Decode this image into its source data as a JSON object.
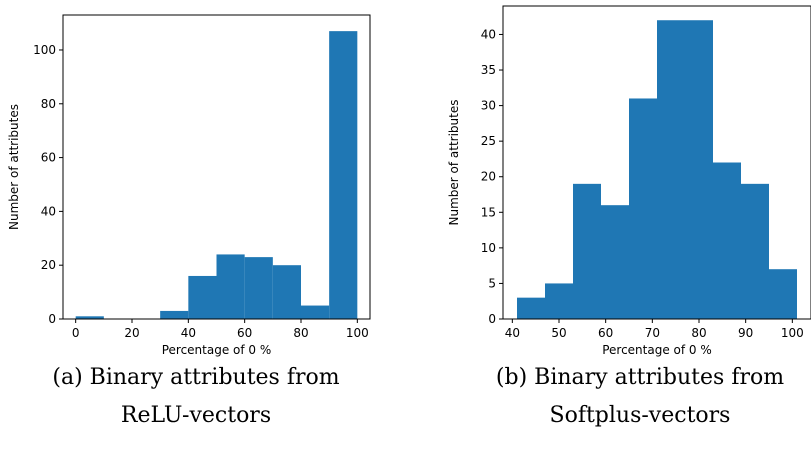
{
  "chart_data": [
    {
      "type": "bar",
      "subtype": "histogram",
      "bins": [
        [
          0,
          10
        ],
        [
          10,
          20
        ],
        [
          20,
          30
        ],
        [
          30,
          40
        ],
        [
          40,
          50
        ],
        [
          50,
          60
        ],
        [
          60,
          70
        ],
        [
          70,
          80
        ],
        [
          80,
          90
        ],
        [
          90,
          100
        ]
      ],
      "values": [
        1,
        0,
        0,
        3,
        16,
        24,
        23,
        20,
        5,
        107
      ],
      "xlabel": "Percentage of 0 %",
      "ylabel": "Number of attributes",
      "xlim": [
        -4.5,
        104.5
      ],
      "ylim": [
        0,
        113
      ],
      "xticks": [
        0,
        20,
        40,
        60,
        80,
        100
      ],
      "yticks": [
        0,
        20,
        40,
        60,
        80,
        100
      ],
      "color": "#1f77b4",
      "caption_lines": [
        "(a) Binary attributes from",
        "ReLU-vectors"
      ]
    },
    {
      "type": "bar",
      "subtype": "histogram",
      "bins": [
        [
          41,
          47
        ],
        [
          47,
          53
        ],
        [
          53,
          59
        ],
        [
          59,
          65
        ],
        [
          65,
          71
        ],
        [
          71,
          77
        ],
        [
          77,
          83
        ],
        [
          83,
          89
        ],
        [
          89,
          95
        ],
        [
          95,
          101
        ]
      ],
      "values": [
        3,
        5,
        19,
        16,
        31,
        42,
        42,
        22,
        19,
        7
      ],
      "xlabel": "Percentage of 0 %",
      "ylabel": "Number of attributes",
      "xlim": [
        38.0,
        104.0
      ],
      "ylim": [
        0,
        44
      ],
      "xticks": [
        40,
        50,
        60,
        70,
        80,
        90,
        100
      ],
      "yticks": [
        0,
        5,
        10,
        15,
        20,
        25,
        30,
        35,
        40
      ],
      "color": "#1f77b4",
      "caption_lines": [
        "(b) Binary attributes from",
        "Softplus-vectors"
      ]
    }
  ]
}
